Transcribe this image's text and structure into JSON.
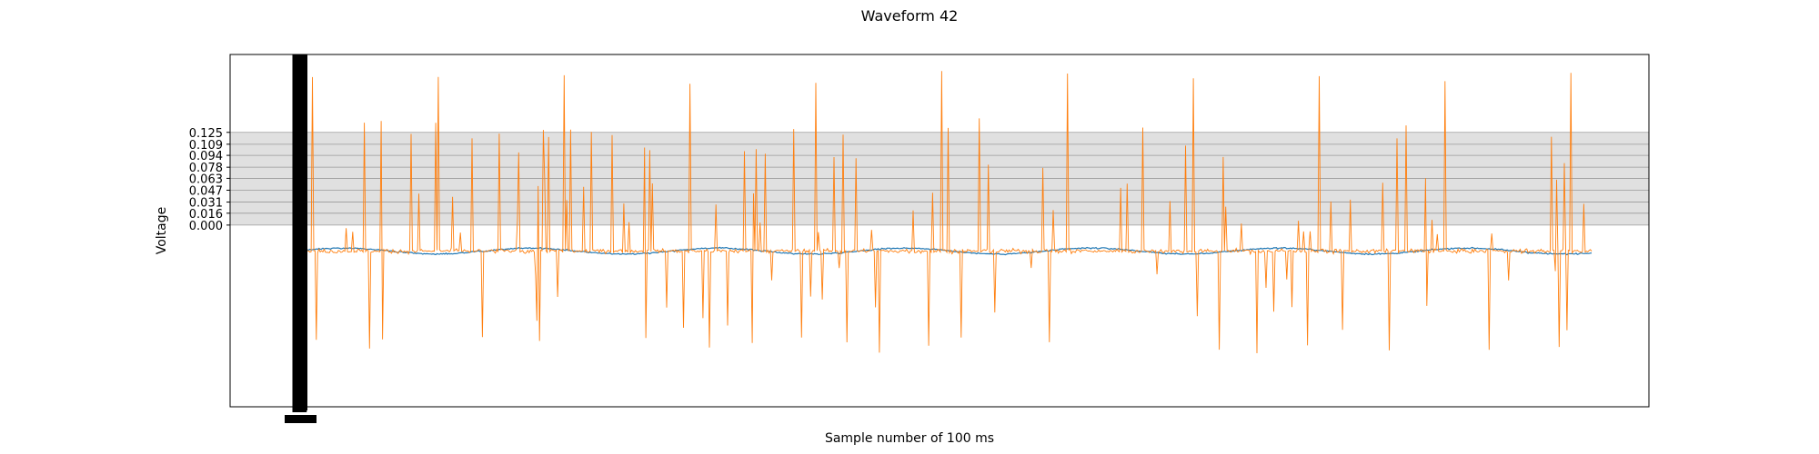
{
  "chart_data": {
    "type": "line",
    "title": "Waveform 42",
    "xlabel": "Sample number of 100 ms",
    "ylabel": "Voltage",
    "y_ticks": [
      "0.000",
      "0.016",
      "0.031",
      "0.047",
      "0.063",
      "0.078",
      "0.094",
      "0.109",
      "0.125"
    ],
    "x_tick_note": "x-axis tick labels are crowded and overlapping; unreadable",
    "grid": true,
    "legend": "none",
    "series": [
      {
        "color": "#1f77b4"
      },
      {
        "color": "#ff7f0e"
      }
    ],
    "approx_summary": {
      "samples_shown": 1000,
      "baseline": -0.035,
      "blue_amplitude": 0.004,
      "orange_noise": 0.006,
      "spike_max": 0.21,
      "spike_min": -0.175,
      "y_range": [
        -0.245,
        0.23
      ]
    }
  }
}
